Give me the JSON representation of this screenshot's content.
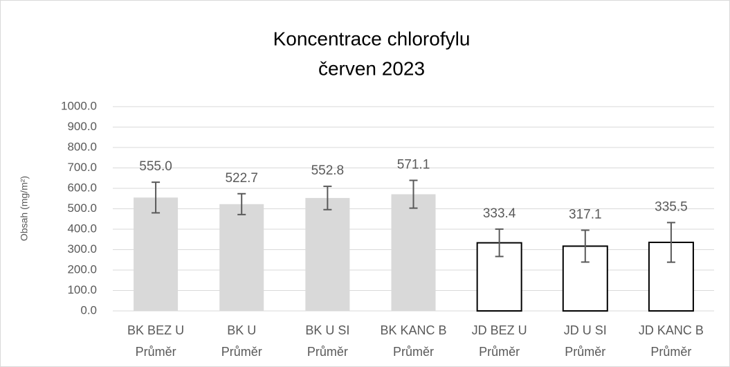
{
  "chart_data": {
    "type": "bar",
    "title": [
      "Koncentrace chlorofylu",
      "červen 2023"
    ],
    "ylabel": "Obsah (mg/m²)",
    "categories": [
      [
        "BK BEZ U",
        "Průměr"
      ],
      [
        "BK U",
        "Průměr"
      ],
      [
        "BK U SI",
        "Průměr"
      ],
      [
        "BK KANC B",
        "Průměr"
      ],
      [
        "JD BEZ U",
        "Průměr"
      ],
      [
        "JD U SI",
        "Průměr"
      ],
      [
        "JD KANC B",
        "Průměr"
      ]
    ],
    "values": [
      555.0,
      522.7,
      552.8,
      571.1,
      333.4,
      317.1,
      335.5
    ],
    "value_labels": [
      "555.0",
      "522.7",
      "552.8",
      "571.1",
      "333.4",
      "317.1",
      "335.5"
    ],
    "errors": [
      75,
      51,
      57,
      68,
      67,
      78,
      97
    ],
    "colors": [
      "#d9d9d9",
      "#d9d9d9",
      "#d9d9d9",
      "#d9d9d9",
      "#ffffff",
      "#ffffff",
      "#ffffff"
    ],
    "edgecolors": [
      "none",
      "none",
      "none",
      "none",
      "#000000",
      "#000000",
      "#000000"
    ],
    "ylim": [
      0,
      1000
    ],
    "yticks": [
      {
        "value": 0,
        "label": "0.0"
      },
      {
        "value": 100,
        "label": "100.0"
      },
      {
        "value": 200,
        "label": "200.0"
      },
      {
        "value": 300,
        "label": "300.0"
      },
      {
        "value": 400,
        "label": "400.0"
      },
      {
        "value": 500,
        "label": "500.0"
      },
      {
        "value": 600,
        "label": "600.0"
      },
      {
        "value": 700,
        "label": "700.0"
      },
      {
        "value": 800,
        "label": "800.0"
      },
      {
        "value": 900,
        "label": "900.0"
      },
      {
        "value": 1000,
        "label": "1000.0"
      }
    ],
    "grid": true
  }
}
